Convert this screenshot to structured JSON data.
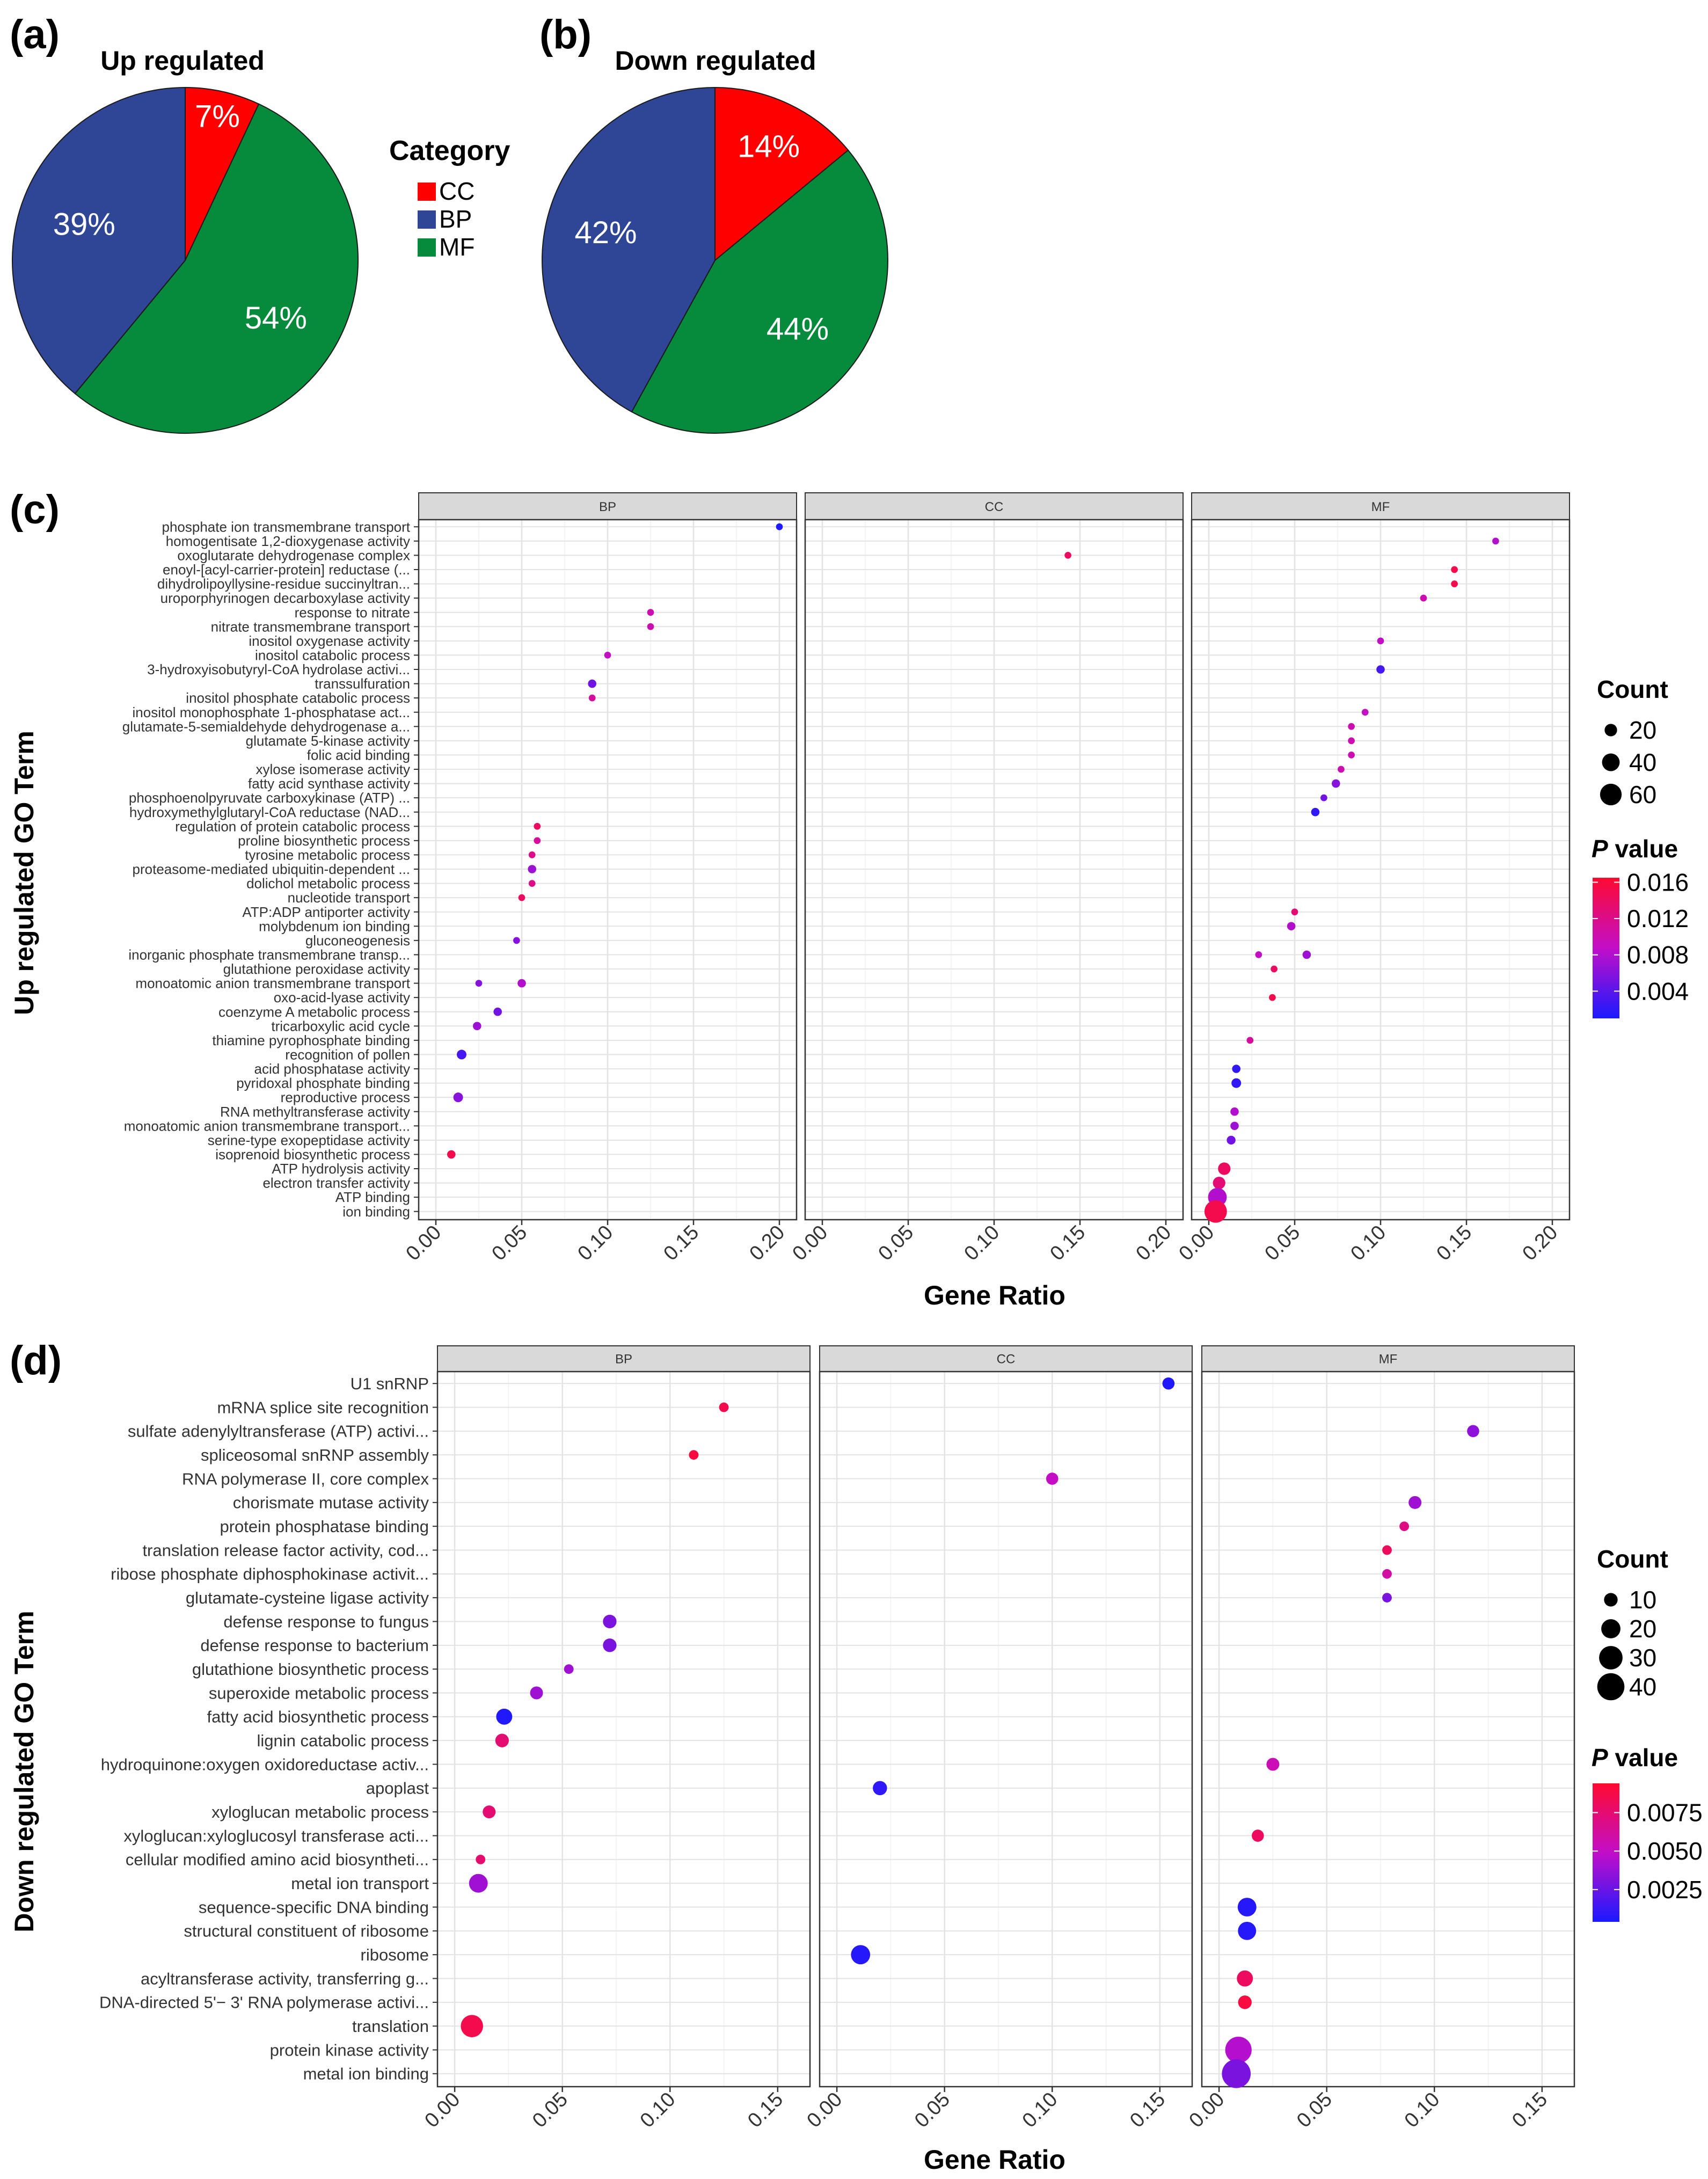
{
  "chart_data": [
    {
      "type": "pie",
      "panel_label": "(a)",
      "title": "Up regulated",
      "slices": [
        {
          "name": "CC",
          "value": 7,
          "label": "7%",
          "color": "#FF0000"
        },
        {
          "name": "BP",
          "value": 39,
          "label": "39%",
          "color": "#2F4596"
        },
        {
          "name": "MF",
          "value": 54,
          "label": "54%",
          "color": "#068A3B"
        }
      ]
    },
    {
      "type": "pie",
      "panel_label": "(b)",
      "title": "Down regulated",
      "slices": [
        {
          "name": "CC",
          "value": 14,
          "label": "14%",
          "color": "#FF0000"
        },
        {
          "name": "BP",
          "value": 42,
          "label": "42%",
          "color": "#2F4596"
        },
        {
          "name": "MF",
          "value": 44,
          "label": "44%",
          "color": "#068A3B"
        }
      ]
    },
    {
      "type": "legend",
      "title": "Category",
      "items": [
        {
          "name": "CC",
          "color": "#FF0000"
        },
        {
          "name": "BP",
          "color": "#2F4596"
        },
        {
          "name": "MF",
          "color": "#068A3B"
        }
      ]
    },
    {
      "type": "scatter",
      "panel_label": "(c)",
      "ylabel": "Up regulated GO Term",
      "xlabel": "Gene Ratio",
      "facets": [
        "BP",
        "CC",
        "MF"
      ],
      "xlim": [
        -0.01,
        0.21
      ],
      "xticks": [
        "0.00",
        "0.05",
        "0.10",
        "0.15",
        "0.20"
      ],
      "terms": [
        "phosphate ion transmembrane transport",
        "homogentisate 1,2-dioxygenase activity",
        "oxoglutarate dehydrogenase complex",
        "enoyl-[acyl-carrier-protein] reductase (...",
        "dihydrolipoyllysine-residue succinyltran...",
        "uroporphyrinogen decarboxylase activity",
        "response to nitrate",
        "nitrate transmembrane transport",
        "inositol oxygenase activity",
        "inositol catabolic process",
        "3-hydroxyisobutyryl-CoA hydrolase activi...",
        "transsulfuration",
        "inositol phosphate catabolic process",
        "inositol monophosphate 1-phosphatase act...",
        "glutamate-5-semialdehyde dehydrogenase a...",
        "glutamate 5-kinase activity",
        "folic acid binding",
        "xylose isomerase activity",
        "fatty acid synthase activity",
        "phosphoenolpyruvate carboxykinase (ATP) ...",
        "hydroxymethylglutaryl-CoA reductase (NAD...",
        "regulation of protein catabolic process",
        "proline biosynthetic process",
        "tyrosine metabolic process",
        "proteasome-mediated ubiquitin-dependent ...",
        "dolichol metabolic process",
        "nucleotide transport",
        "ATP:ADP antiporter activity",
        "molybdenum ion binding",
        "gluconeogenesis",
        "inorganic phosphate transmembrane transp...",
        "glutathione peroxidase activity",
        "monoatomic anion transmembrane transport",
        "oxo-acid-lyase activity",
        "coenzyme A metabolic process",
        "tricarboxylic acid cycle",
        "thiamine pyrophosphate binding",
        "recognition of pollen",
        "acid phosphatase activity",
        "pyridoxal phosphate binding",
        "reproductive process",
        "RNA methyltransferase activity",
        "monoatomic anion transmembrane transport...",
        "serine-type exopeptidase activity",
        "isoprenoid biosynthetic process",
        "ATP hydrolysis activity",
        "electron transfer activity",
        "ATP binding",
        "ion binding"
      ],
      "points": [
        {
          "facet": "BP",
          "term": 0,
          "x": 0.2,
          "count": 6,
          "p": 0.0012
        },
        {
          "facet": "MF",
          "term": 1,
          "x": 0.167,
          "count": 6,
          "p": 0.008
        },
        {
          "facet": "CC",
          "term": 2,
          "x": 0.143,
          "count": 6,
          "p": 0.014
        },
        {
          "facet": "MF",
          "term": 3,
          "x": 0.143,
          "count": 6,
          "p": 0.015
        },
        {
          "facet": "MF",
          "term": 4,
          "x": 0.143,
          "count": 6,
          "p": 0.015
        },
        {
          "facet": "MF",
          "term": 5,
          "x": 0.125,
          "count": 6,
          "p": 0.01
        },
        {
          "facet": "BP",
          "term": 6,
          "x": 0.125,
          "count": 6,
          "p": 0.01
        },
        {
          "facet": "BP",
          "term": 7,
          "x": 0.125,
          "count": 6,
          "p": 0.01
        },
        {
          "facet": "MF",
          "term": 8,
          "x": 0.1,
          "count": 6,
          "p": 0.009
        },
        {
          "facet": "BP",
          "term": 9,
          "x": 0.1,
          "count": 6,
          "p": 0.009
        },
        {
          "facet": "MF",
          "term": 10,
          "x": 0.1,
          "count": 9,
          "p": 0.003
        },
        {
          "facet": "BP",
          "term": 11,
          "x": 0.091,
          "count": 9,
          "p": 0.005
        },
        {
          "facet": "BP",
          "term": 12,
          "x": 0.091,
          "count": 6,
          "p": 0.011
        },
        {
          "facet": "MF",
          "term": 13,
          "x": 0.091,
          "count": 6,
          "p": 0.009
        },
        {
          "facet": "MF",
          "term": 14,
          "x": 0.083,
          "count": 6,
          "p": 0.01
        },
        {
          "facet": "MF",
          "term": 15,
          "x": 0.083,
          "count": 6,
          "p": 0.01
        },
        {
          "facet": "MF",
          "term": 16,
          "x": 0.083,
          "count": 6,
          "p": 0.01
        },
        {
          "facet": "MF",
          "term": 17,
          "x": 0.077,
          "count": 6,
          "p": 0.01
        },
        {
          "facet": "MF",
          "term": 18,
          "x": 0.074,
          "count": 9,
          "p": 0.006
        },
        {
          "facet": "MF",
          "term": 19,
          "x": 0.067,
          "count": 6,
          "p": 0.005
        },
        {
          "facet": "MF",
          "term": 20,
          "x": 0.062,
          "count": 9,
          "p": 0.002
        },
        {
          "facet": "BP",
          "term": 21,
          "x": 0.059,
          "count": 6,
          "p": 0.014
        },
        {
          "facet": "BP",
          "term": 22,
          "x": 0.059,
          "count": 6,
          "p": 0.011
        },
        {
          "facet": "BP",
          "term": 23,
          "x": 0.056,
          "count": 6,
          "p": 0.012
        },
        {
          "facet": "BP",
          "term": 24,
          "x": 0.056,
          "count": 9,
          "p": 0.007
        },
        {
          "facet": "BP",
          "term": 25,
          "x": 0.056,
          "count": 6,
          "p": 0.012
        },
        {
          "facet": "BP",
          "term": 26,
          "x": 0.05,
          "count": 6,
          "p": 0.014
        },
        {
          "facet": "MF",
          "term": 27,
          "x": 0.05,
          "count": 6,
          "p": 0.013
        },
        {
          "facet": "MF",
          "term": 28,
          "x": 0.048,
          "count": 9,
          "p": 0.008
        },
        {
          "facet": "BP",
          "term": 29,
          "x": 0.047,
          "count": 6,
          "p": 0.006
        },
        {
          "facet": "MF",
          "term": 30,
          "x": 0.029,
          "count": 6,
          "p": 0.009
        },
        {
          "facet": "MF",
          "term": 30,
          "x": 0.057,
          "count": 9,
          "p": 0.007
        },
        {
          "facet": "MF",
          "term": 31,
          "x": 0.038,
          "count": 6,
          "p": 0.014
        },
        {
          "facet": "BP",
          "term": 32,
          "x": 0.025,
          "count": 6,
          "p": 0.006
        },
        {
          "facet": "BP",
          "term": 32,
          "x": 0.05,
          "count": 9,
          "p": 0.008
        },
        {
          "facet": "MF",
          "term": 33,
          "x": 0.037,
          "count": 6,
          "p": 0.015
        },
        {
          "facet": "BP",
          "term": 34,
          "x": 0.036,
          "count": 9,
          "p": 0.005
        },
        {
          "facet": "BP",
          "term": 35,
          "x": 0.024,
          "count": 9,
          "p": 0.007
        },
        {
          "facet": "MF",
          "term": 36,
          "x": 0.024,
          "count": 6,
          "p": 0.011
        },
        {
          "facet": "BP",
          "term": 37,
          "x": 0.015,
          "count": 12,
          "p": 0.003
        },
        {
          "facet": "MF",
          "term": 38,
          "x": 0.016,
          "count": 9,
          "p": 0.002
        },
        {
          "facet": "MF",
          "term": 39,
          "x": 0.016,
          "count": 12,
          "p": 0.002
        },
        {
          "facet": "BP",
          "term": 40,
          "x": 0.013,
          "count": 12,
          "p": 0.006
        },
        {
          "facet": "MF",
          "term": 41,
          "x": 0.015,
          "count": 9,
          "p": 0.008
        },
        {
          "facet": "MF",
          "term": 42,
          "x": 0.015,
          "count": 9,
          "p": 0.007
        },
        {
          "facet": "MF",
          "term": 43,
          "x": 0.013,
          "count": 10,
          "p": 0.005
        },
        {
          "facet": "BP",
          "term": 44,
          "x": 0.009,
          "count": 9,
          "p": 0.015
        },
        {
          "facet": "MF",
          "term": 45,
          "x": 0.009,
          "count": 20,
          "p": 0.014
        },
        {
          "facet": "MF",
          "term": 46,
          "x": 0.006,
          "count": 20,
          "p": 0.013
        },
        {
          "facet": "MF",
          "term": 47,
          "x": 0.005,
          "count": 45,
          "p": 0.008
        },
        {
          "facet": "MF",
          "term": 48,
          "x": 0.004,
          "count": 65,
          "p": 0.015
        }
      ],
      "size_legend": {
        "title": "Count",
        "values": [
          20,
          40,
          60
        ]
      },
      "color_legend": {
        "title_italic": "P",
        "title": " value",
        "ticks": [
          "0.016",
          "0.012",
          "0.008",
          "0.004"
        ],
        "min": 0.001,
        "max": 0.0165
      }
    },
    {
      "type": "scatter",
      "panel_label": "(d)",
      "ylabel": "Down regulated GO Term",
      "xlabel": "Gene Ratio",
      "facets": [
        "BP",
        "CC",
        "MF"
      ],
      "xlim": [
        -0.008,
        0.165
      ],
      "xticks": [
        "0.00",
        "0.05",
        "0.10",
        "0.15"
      ],
      "terms": [
        "U1 snRNP",
        "mRNA splice site recognition",
        "sulfate adenylyltransferase (ATP) activi...",
        "spliceosomal snRNP assembly",
        "RNA polymerase II, core complex",
        "chorismate mutase activity",
        "protein phosphatase binding",
        "translation release factor activity, cod...",
        "ribose phosphate diphosphokinase activit...",
        "glutamate-cysteine ligase activity",
        "defense response to fungus",
        "defense response to bacterium",
        "glutathione biosynthetic process",
        "superoxide metabolic process",
        "fatty acid biosynthetic process",
        "lignin catabolic process",
        "hydroquinone:oxygen oxidoreductase activ...",
        "apoplast",
        "xyloglucan metabolic process",
        "xyloglucan:xyloglucosyl transferase acti...",
        "cellular modified amino acid biosyntheti...",
        "metal ion transport",
        "sequence-specific DNA binding",
        "structural constituent of ribosome",
        "ribosome",
        "acyltransferase activity, transferring g...",
        "DNA-directed 5'− 3' RNA polymerase activi...",
        "translation",
        "protein kinase activity",
        "metal ion binding"
      ],
      "points": [
        {
          "facet": "CC",
          "term": 0,
          "x": 0.154,
          "count": 8,
          "p": 0.0006
        },
        {
          "facet": "BP",
          "term": 1,
          "x": 0.125,
          "count": 5,
          "p": 0.0085
        },
        {
          "facet": "MF",
          "term": 2,
          "x": 0.118,
          "count": 8,
          "p": 0.0035
        },
        {
          "facet": "BP",
          "term": 3,
          "x": 0.111,
          "count": 5,
          "p": 0.009
        },
        {
          "facet": "CC",
          "term": 4,
          "x": 0.1,
          "count": 8,
          "p": 0.005
        },
        {
          "facet": "MF",
          "term": 5,
          "x": 0.091,
          "count": 9,
          "p": 0.004
        },
        {
          "facet": "MF",
          "term": 6,
          "x": 0.086,
          "count": 5,
          "p": 0.007
        },
        {
          "facet": "MF",
          "term": 7,
          "x": 0.078,
          "count": 5,
          "p": 0.008
        },
        {
          "facet": "MF",
          "term": 8,
          "x": 0.078,
          "count": 5,
          "p": 0.006
        },
        {
          "facet": "MF",
          "term": 9,
          "x": 0.078,
          "count": 5,
          "p": 0.003
        },
        {
          "facet": "BP",
          "term": 10,
          "x": 0.072,
          "count": 10,
          "p": 0.003
        },
        {
          "facet": "BP",
          "term": 11,
          "x": 0.072,
          "count": 10,
          "p": 0.003
        },
        {
          "facet": "BP",
          "term": 12,
          "x": 0.053,
          "count": 5,
          "p": 0.004
        },
        {
          "facet": "BP",
          "term": 13,
          "x": 0.038,
          "count": 9,
          "p": 0.004
        },
        {
          "facet": "BP",
          "term": 14,
          "x": 0.023,
          "count": 14,
          "p": 0.0006
        },
        {
          "facet": "BP",
          "term": 15,
          "x": 0.022,
          "count": 10,
          "p": 0.0075
        },
        {
          "facet": "MF",
          "term": 16,
          "x": 0.025,
          "count": 9,
          "p": 0.0055
        },
        {
          "facet": "CC",
          "term": 17,
          "x": 0.02,
          "count": 11,
          "p": 0.001
        },
        {
          "facet": "BP",
          "term": 18,
          "x": 0.016,
          "count": 9,
          "p": 0.0075
        },
        {
          "facet": "MF",
          "term": 19,
          "x": 0.018,
          "count": 8,
          "p": 0.008
        },
        {
          "facet": "BP",
          "term": 20,
          "x": 0.012,
          "count": 5,
          "p": 0.0075
        },
        {
          "facet": "BP",
          "term": 21,
          "x": 0.011,
          "count": 19,
          "p": 0.004
        },
        {
          "facet": "MF",
          "term": 22,
          "x": 0.013,
          "count": 19,
          "p": 0.0007
        },
        {
          "facet": "MF",
          "term": 23,
          "x": 0.013,
          "count": 18,
          "p": 0.0007
        },
        {
          "facet": "CC",
          "term": 24,
          "x": 0.011,
          "count": 20,
          "p": 0.0007
        },
        {
          "facet": "MF",
          "term": 25,
          "x": 0.012,
          "count": 14,
          "p": 0.008
        },
        {
          "facet": "MF",
          "term": 26,
          "x": 0.012,
          "count": 10,
          "p": 0.009
        },
        {
          "facet": "BP",
          "term": 27,
          "x": 0.008,
          "count": 27,
          "p": 0.0085
        },
        {
          "facet": "MF",
          "term": 28,
          "x": 0.009,
          "count": 38,
          "p": 0.0045
        },
        {
          "facet": "MF",
          "term": 29,
          "x": 0.008,
          "count": 45,
          "p": 0.003
        }
      ],
      "size_legend": {
        "title": "Count",
        "values": [
          10,
          20,
          30,
          40
        ]
      },
      "color_legend": {
        "title_italic": "P",
        "title": " value",
        "ticks": [
          "0.0075",
          "0.0050",
          "0.0025"
        ],
        "min": 0.0004,
        "max": 0.0094
      }
    }
  ]
}
